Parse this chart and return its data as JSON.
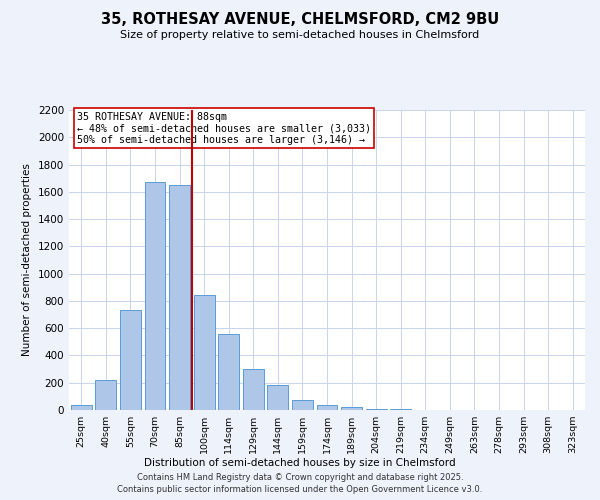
{
  "title_line1": "35, ROTHESAY AVENUE, CHELMSFORD, CM2 9BU",
  "title_line2": "Size of property relative to semi-detached houses in Chelmsford",
  "xlabel": "Distribution of semi-detached houses by size in Chelmsford",
  "ylabel": "Number of semi-detached properties",
  "bar_labels": [
    "25sqm",
    "40sqm",
    "55sqm",
    "70sqm",
    "85sqm",
    "100sqm",
    "114sqm",
    "129sqm",
    "144sqm",
    "159sqm",
    "174sqm",
    "189sqm",
    "204sqm",
    "219sqm",
    "234sqm",
    "249sqm",
    "263sqm",
    "278sqm",
    "293sqm",
    "308sqm",
    "323sqm"
  ],
  "bar_values": [
    40,
    220,
    730,
    1670,
    1650,
    840,
    560,
    300,
    180,
    70,
    35,
    20,
    10,
    5,
    2,
    1,
    0,
    0,
    0,
    0,
    0
  ],
  "bar_color": "#aec6e8",
  "bar_edgecolor": "#5b9bd5",
  "vline_x": 4.5,
  "vline_color": "#c00000",
  "annotation_title": "35 ROTHESAY AVENUE: 88sqm",
  "annotation_line1": "← 48% of semi-detached houses are smaller (3,033)",
  "annotation_line2": "50% of semi-detached houses are larger (3,146) →",
  "ylim": [
    0,
    2200
  ],
  "yticks": [
    0,
    200,
    400,
    600,
    800,
    1000,
    1200,
    1400,
    1600,
    1800,
    2000,
    2200
  ],
  "footer_line1": "Contains HM Land Registry data © Crown copyright and database right 2025.",
  "footer_line2": "Contains public sector information licensed under the Open Government Licence v3.0.",
  "bg_color": "#eef2fb",
  "plot_bg_color": "#ffffff",
  "grid_color": "#c8d4ee"
}
